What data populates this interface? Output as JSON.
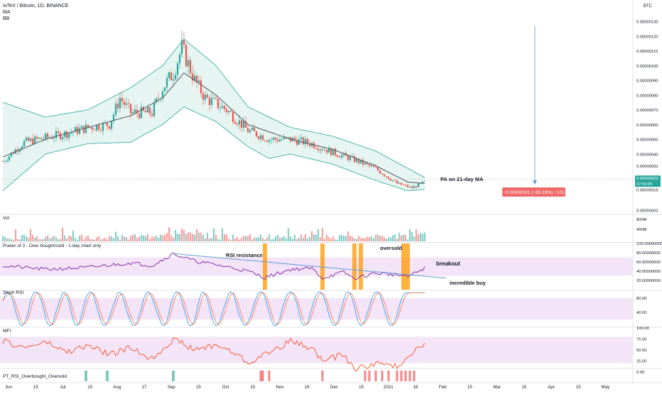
{
  "header": {
    "symbol": "IoTeX / Bitcoin, 1D, BINANCE",
    "indicator_1": "MA",
    "indicator_2": "BB",
    "currency": "BTC"
  },
  "colors": {
    "up": "#26a69a",
    "down": "#ef5350",
    "bb_fill": "#e6f5f1",
    "bb_line": "#26a69a",
    "ma": "#5d606b",
    "rsi_band": "#f3e4f8",
    "rsi_line": "#7b1fa2",
    "oversold": "#ff9800",
    "stoch_k": "#2196f3",
    "stoch_d": "#ff7043",
    "mfi_line": "#f4511e",
    "trend": "#5b9bd5",
    "badge": "#f06a6a",
    "price_tag": "#26a69a"
  },
  "annotations": {
    "pa_ma": "PA on 21-day MA",
    "rsi_resistance": "RSI resistance",
    "oversold": "oversold",
    "breakout": "breakout",
    "incredible_buy": "incredible buy",
    "measure": "−0.00000101 (−85.19%) −101"
  },
  "pane_labels": {
    "volume": "Vol",
    "rsi": "Power of 3 - Over bought/sold - 1-day chart only",
    "stoch": "Stoch RSI",
    "mfi": "MFI",
    "pt": "PT_RSI_Overbought_Oversold"
  },
  "price_labels": {
    "current_price": "0.00000023",
    "countdown": "07:55:05"
  },
  "x_axis_labels": [
    "Jun",
    "15",
    "Jul",
    "15",
    "Aug",
    "17",
    "Sep",
    "15",
    "Oct",
    "15",
    "Nov",
    "16",
    "Dec",
    "15",
    "2021",
    "18",
    "Feb",
    "15",
    "Mar",
    "15",
    "Apr",
    "15",
    "May"
  ],
  "chart_data": [
    {
      "type": "candlestick",
      "pane": "price",
      "y_unit": "BTC",
      "ylim": [
        0.0,
        1.3e-06
      ],
      "y_ticks": [
        "0.00000002",
        "0.00000016",
        "0.00000023",
        "0.00000032",
        "0.00000040",
        "0.00000050",
        "0.00000060",
        "0.00000070",
        "0.00000080",
        "0.00000090",
        "0.00000100",
        "0.00000110",
        "0.00000120",
        "0.00000130"
      ],
      "close_keypoints": [
        [
          0,
          3.5e-07
        ],
        [
          10,
          4.8e-07
        ],
        [
          20,
          5.1e-07
        ],
        [
          30,
          5.4e-07
        ],
        [
          40,
          5.8e-07
        ],
        [
          50,
          6e-07
        ],
        [
          55,
          7.8e-07
        ],
        [
          60,
          6.8e-07
        ],
        [
          70,
          6.8e-07
        ],
        [
          75,
          8.5e-07
        ],
        [
          80,
          9.5e-07
        ],
        [
          84,
          1.12e-06
        ],
        [
          90,
          9e-07
        ],
        [
          95,
          7.8e-07
        ],
        [
          105,
          7e-07
        ],
        [
          115,
          5.6e-07
        ],
        [
          125,
          5e-07
        ],
        [
          135,
          5e-07
        ],
        [
          145,
          4.7e-07
        ],
        [
          155,
          4.1e-07
        ],
        [
          165,
          3.6e-07
        ],
        [
          175,
          3e-07
        ],
        [
          185,
          2e-07
        ],
        [
          192,
          1.7e-07
        ],
        [
          198,
          2.1e-07
        ]
      ],
      "bb_upper": [
        [
          0,
          7.5e-07
        ],
        [
          20,
          6.5e-07
        ],
        [
          40,
          7e-07
        ],
        [
          60,
          8.5e-07
        ],
        [
          75,
          1e-06
        ],
        [
          85,
          1.18e-06
        ],
        [
          100,
          1e-06
        ],
        [
          115,
          7.2e-07
        ],
        [
          135,
          5.8e-07
        ],
        [
          155,
          5.2e-07
        ],
        [
          175,
          4.2e-07
        ],
        [
          198,
          2.4e-07
        ]
      ],
      "bb_lower": [
        [
          0,
          1.5e-07
        ],
        [
          20,
          4e-07
        ],
        [
          40,
          4.7e-07
        ],
        [
          60,
          4.8e-07
        ],
        [
          75,
          6e-07
        ],
        [
          85,
          7.2e-07
        ],
        [
          100,
          6.2e-07
        ],
        [
          115,
          4.5e-07
        ],
        [
          125,
          3.7e-07
        ],
        [
          135,
          4e-07
        ],
        [
          155,
          3.3e-07
        ],
        [
          175,
          2.2e-07
        ],
        [
          190,
          1.5e-07
        ],
        [
          198,
          1.6e-07
        ]
      ],
      "ma21": [
        [
          0,
          3.8e-07
        ],
        [
          20,
          5e-07
        ],
        [
          40,
          5.8e-07
        ],
        [
          60,
          6.6e-07
        ],
        [
          75,
          7.8e-07
        ],
        [
          85,
          9.5e-07
        ],
        [
          100,
          8e-07
        ],
        [
          115,
          6e-07
        ],
        [
          135,
          5e-07
        ],
        [
          155,
          4.3e-07
        ],
        [
          175,
          3.2e-07
        ],
        [
          190,
          2.1e-07
        ],
        [
          198,
          2e-07
        ]
      ]
    },
    {
      "type": "bar",
      "pane": "volume",
      "y_ticks": [
        "800M",
        "400M"
      ]
    },
    {
      "type": "line",
      "pane": "rsi",
      "ylim": [
        0,
        100
      ],
      "y_ticks": [
        "100.00000000",
        "80.00000000",
        "60.00000000",
        "40.00000000",
        "20.00000000"
      ],
      "band": [
        30,
        70
      ],
      "keypoints": [
        [
          0,
          52
        ],
        [
          20,
          44
        ],
        [
          40,
          48
        ],
        [
          60,
          58
        ],
        [
          70,
          52
        ],
        [
          80,
          78
        ],
        [
          90,
          62
        ],
        [
          105,
          50
        ],
        [
          115,
          40
        ],
        [
          123,
          26
        ],
        [
          135,
          44
        ],
        [
          145,
          46
        ],
        [
          150,
          25
        ],
        [
          160,
          38
        ],
        [
          165,
          24
        ],
        [
          175,
          36
        ],
        [
          185,
          32
        ],
        [
          190,
          28
        ],
        [
          198,
          47
        ]
      ],
      "oversold_days": [
        123,
        150,
        165,
        168,
        188,
        190
      ],
      "resistance_line": [
        [
          80,
          78
        ],
        [
          208,
          25
        ]
      ]
    },
    {
      "type": "line",
      "pane": "stoch",
      "ylim": [
        0,
        100
      ],
      "y_ticks": [
        "80.00",
        "40.00"
      ],
      "band": [
        20,
        80
      ]
    },
    {
      "type": "line",
      "pane": "mfi",
      "ylim": [
        0,
        100
      ],
      "y_ticks": [
        "100.00",
        "75.00",
        "50.00",
        "25.00",
        "0.00"
      ],
      "band": [
        20,
        80
      ],
      "keypoints": [
        [
          0,
          70
        ],
        [
          10,
          55
        ],
        [
          20,
          68
        ],
        [
          30,
          45
        ],
        [
          40,
          60
        ],
        [
          50,
          40
        ],
        [
          60,
          55
        ],
        [
          70,
          30
        ],
        [
          80,
          75
        ],
        [
          90,
          50
        ],
        [
          100,
          62
        ],
        [
          110,
          40
        ],
        [
          115,
          20
        ],
        [
          125,
          45
        ],
        [
          135,
          70
        ],
        [
          145,
          55
        ],
        [
          150,
          25
        ],
        [
          160,
          40
        ],
        [
          165,
          6
        ],
        [
          175,
          20
        ],
        [
          185,
          12
        ],
        [
          192,
          45
        ],
        [
          198,
          68
        ]
      ]
    },
    {
      "type": "bar",
      "pane": "pt_rsi",
      "buy_days": [
        39,
        49,
        80
      ],
      "sell_days": [
        121,
        122,
        125,
        150,
        170,
        172,
        175,
        178,
        181,
        185,
        187,
        189,
        191,
        193
      ]
    }
  ]
}
